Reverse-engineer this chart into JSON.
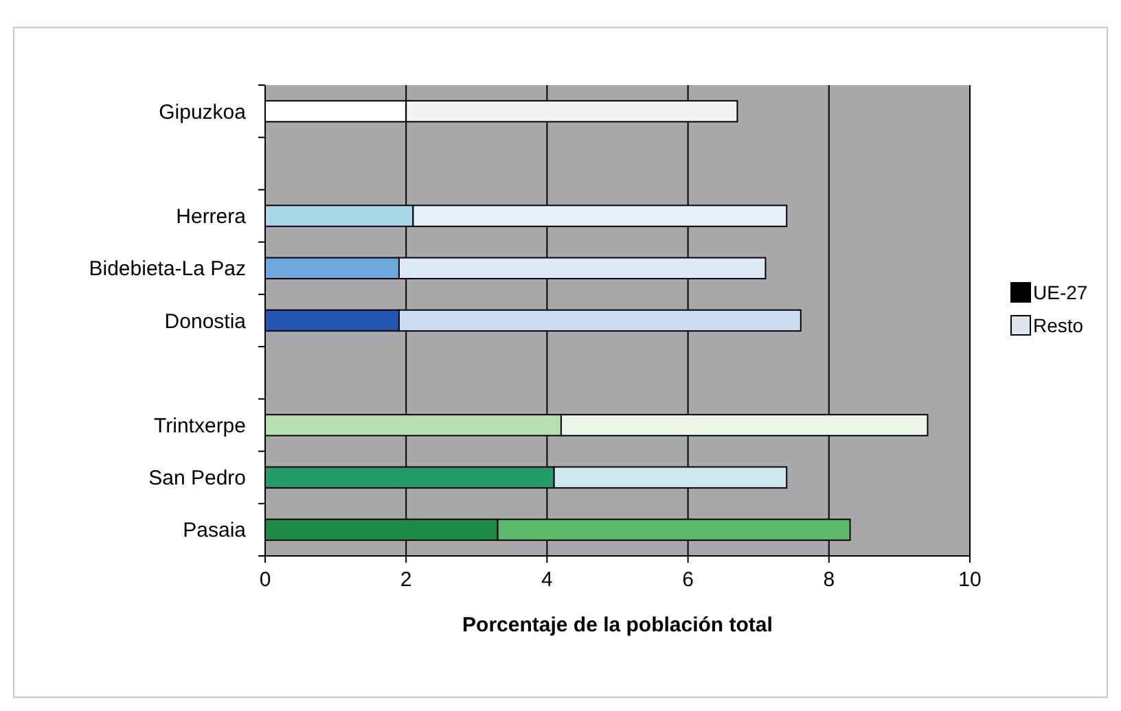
{
  "chart_data": {
    "type": "bar",
    "orientation": "horizontal",
    "stacked": true,
    "xlabel": "Porcentaje de la población total",
    "categories": [
      "Gipuzkoa",
      null,
      "Herrera",
      "Bidebieta-La Paz",
      "Donostia",
      null,
      "Trintxerpe",
      "San Pedro",
      "Pasaia"
    ],
    "series": [
      {
        "name": "UE-27",
        "color": "#000000",
        "colors": [
          "#ffffff",
          null,
          "#a8d8ea",
          "#6fa8dc",
          "#2356b0",
          null,
          "#b5dfb0",
          "#239b6b",
          "#1e8c44"
        ],
        "values": [
          2.0,
          null,
          2.1,
          1.9,
          1.9,
          null,
          4.2,
          4.1,
          3.3
        ]
      },
      {
        "name": "Resto",
        "color": "#dde6ee",
        "colors": [
          "#f4f4f4",
          null,
          "#e6f2f8",
          "#dde9f5",
          "#c9dcf2",
          null,
          "#eef6e8",
          "#cfe8ec",
          "#5cb86a"
        ],
        "values": [
          4.7,
          null,
          5.3,
          5.2,
          5.7,
          null,
          5.2,
          3.3,
          5.0
        ]
      }
    ],
    "xlim": [
      0,
      10
    ],
    "xticks": [
      0,
      2,
      4,
      6,
      8,
      10
    ],
    "grid": "x",
    "legend": "right"
  }
}
